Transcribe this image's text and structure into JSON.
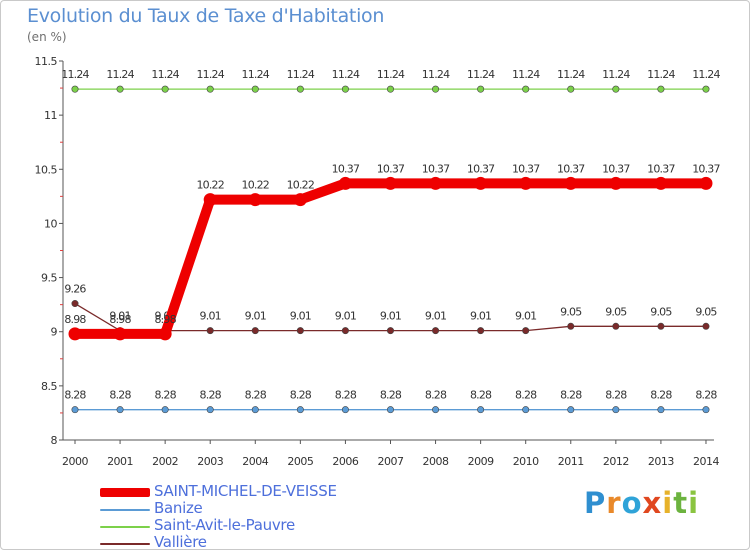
{
  "title": "Evolution du Taux de Taxe d'Habitation",
  "subtitle": "(en %)",
  "logo_text": "Proxiti",
  "chart_data": {
    "type": "line",
    "title": "Evolution du Taux de Taxe d'Habitation",
    "subtitle": "(en %)",
    "xlabel": "",
    "ylabel": "",
    "categories": [
      "2000",
      "2001",
      "2002",
      "2003",
      "2004",
      "2005",
      "2006",
      "2007",
      "2008",
      "2009",
      "2010",
      "2011",
      "2012",
      "2013",
      "2014"
    ],
    "y_ticks": [
      "8",
      "8.5",
      "9",
      "9.5",
      "10",
      "10.5",
      "11",
      "11.5"
    ],
    "ylim": [
      8,
      11.5
    ],
    "grid": false,
    "legend_position": "bottom-left",
    "series": [
      {
        "name": "SAINT-MICHEL-DE-VEISSE",
        "color": "#ee0000",
        "emphasis": true,
        "values": [
          8.98,
          8.98,
          8.98,
          10.22,
          10.22,
          10.22,
          10.37,
          10.37,
          10.37,
          10.37,
          10.37,
          10.37,
          10.37,
          10.37,
          10.37
        ],
        "labels": [
          "8.98",
          "8.98",
          "8.98",
          "10.22",
          "10.22",
          "10.22",
          "10.37",
          "10.37",
          "10.37",
          "10.37",
          "10.37",
          "10.37",
          "10.37",
          "10.37",
          "10.37"
        ]
      },
      {
        "name": "Banize",
        "color": "#5b9bd5",
        "values": [
          8.28,
          8.28,
          8.28,
          8.28,
          8.28,
          8.28,
          8.28,
          8.28,
          8.28,
          8.28,
          8.28,
          8.28,
          8.28,
          8.28,
          8.28
        ],
        "labels": [
          "8.28",
          "8.28",
          "8.28",
          "8.28",
          "8.28",
          "8.28",
          "8.28",
          "8.28",
          "8.28",
          "8.28",
          "8.28",
          "8.28",
          "8.28",
          "8.28",
          "8.28"
        ]
      },
      {
        "name": "Saint-Avit-le-Pauvre",
        "color": "#7cd14a",
        "values": [
          11.24,
          11.24,
          11.24,
          11.24,
          11.24,
          11.24,
          11.24,
          11.24,
          11.24,
          11.24,
          11.24,
          11.24,
          11.24,
          11.24,
          11.24
        ],
        "labels": [
          "11.24",
          "11.24",
          "11.24",
          "11.24",
          "11.24",
          "11.24",
          "11.24",
          "11.24",
          "11.24",
          "11.24",
          "11.24",
          "11.24",
          "11.24",
          "11.24",
          "11.24"
        ]
      },
      {
        "name": "Vallière",
        "color": "#7a2a2a",
        "values": [
          9.26,
          9.01,
          9.01,
          9.01,
          9.01,
          9.01,
          9.01,
          9.01,
          9.01,
          9.01,
          9.01,
          9.05,
          9.05,
          9.05,
          9.05
        ],
        "labels": [
          "9.26",
          "9.01",
          "9.01",
          "9.01",
          "9.01",
          "9.01",
          "9.01",
          "9.01",
          "9.01",
          "9.01",
          "9.01",
          "9.05",
          "9.05",
          "9.05",
          "9.05"
        ]
      }
    ]
  }
}
